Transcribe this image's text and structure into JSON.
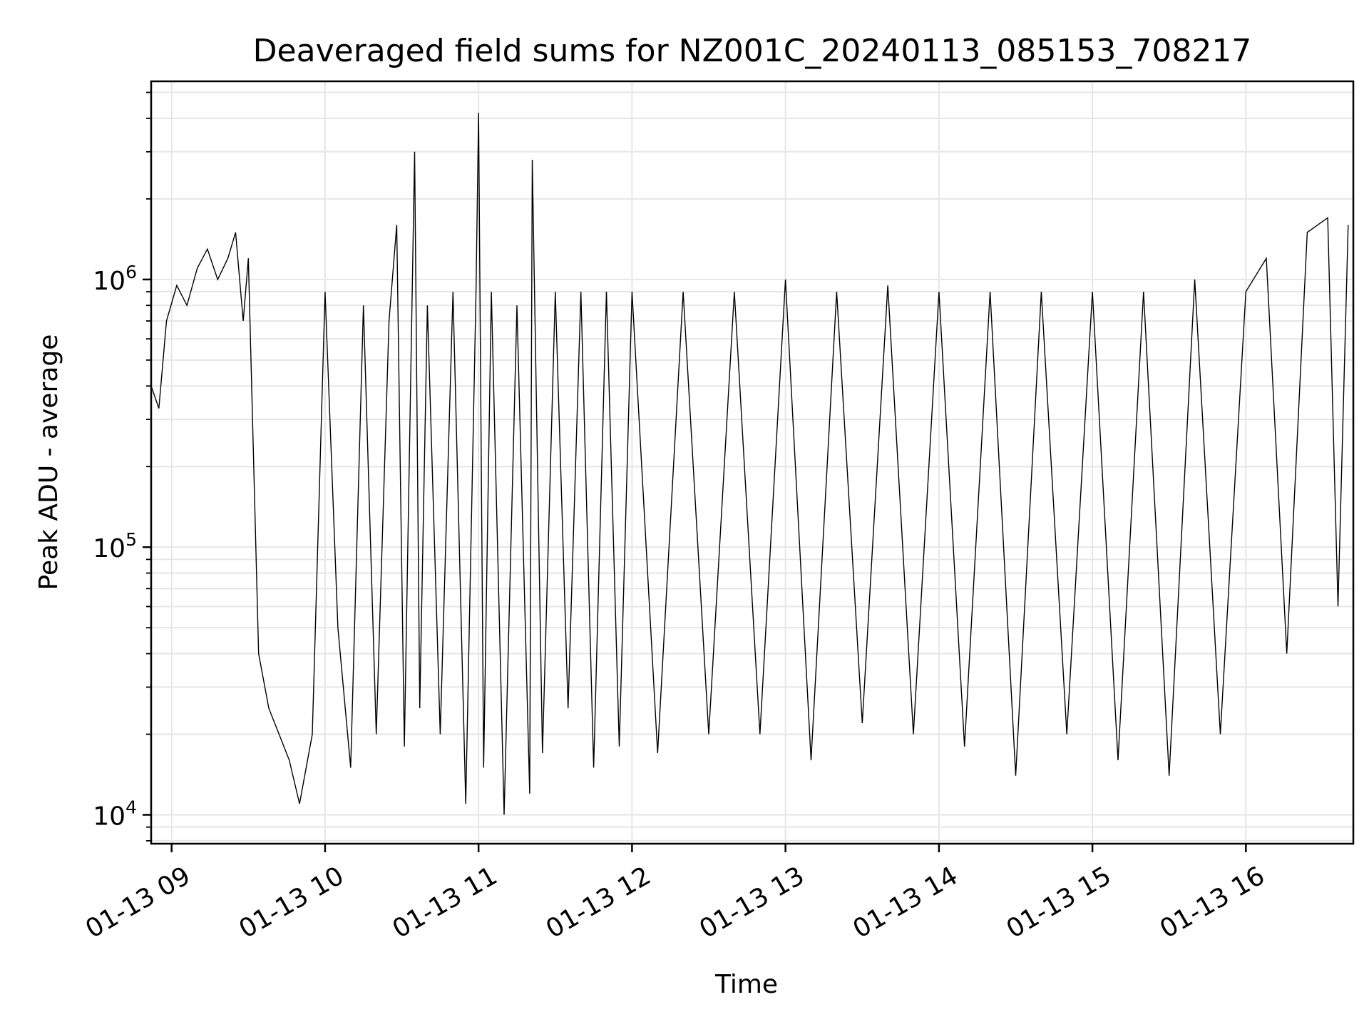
{
  "chart_data": {
    "type": "line",
    "title": "Deaveraged field sums for NZ001C_20240113_085153_708217",
    "xlabel": "Time",
    "ylabel": "Peak ADU - average",
    "yscale": "log",
    "grid": true,
    "line_color": "#000000",
    "grid_color": "#e6e6e6",
    "xlim": [
      "2024-01-13 08:52",
      "2024-01-13 16:42"
    ],
    "ylim": [
      7800,
      5500000
    ],
    "x_ticks": [
      {
        "value": "2024-01-13 09:00",
        "label": "01-13 09"
      },
      {
        "value": "2024-01-13 10:00",
        "label": "01-13 10"
      },
      {
        "value": "2024-01-13 11:00",
        "label": "01-13 11"
      },
      {
        "value": "2024-01-13 12:00",
        "label": "01-13 12"
      },
      {
        "value": "2024-01-13 13:00",
        "label": "01-13 13"
      },
      {
        "value": "2024-01-13 14:00",
        "label": "01-13 14"
      },
      {
        "value": "2024-01-13 15:00",
        "label": "01-13 15"
      },
      {
        "value": "2024-01-13 16:00",
        "label": "01-13 16"
      }
    ],
    "y_ticks": [
      {
        "value": 10000,
        "base": "10",
        "exp": "4"
      },
      {
        "value": 100000,
        "base": "10",
        "exp": "5"
      },
      {
        "value": 1000000,
        "base": "10",
        "exp": "6"
      }
    ],
    "series": [
      {
        "x": [
          "2024-01-13 08:52",
          "2024-01-13 08:55",
          "2024-01-13 08:58",
          "2024-01-13 09:02",
          "2024-01-13 09:06",
          "2024-01-13 09:10",
          "2024-01-13 09:14",
          "2024-01-13 09:18",
          "2024-01-13 09:22",
          "2024-01-13 09:25",
          "2024-01-13 09:28",
          "2024-01-13 09:30",
          "2024-01-13 09:34",
          "2024-01-13 09:38",
          "2024-01-13 09:42",
          "2024-01-13 09:46",
          "2024-01-13 09:50",
          "2024-01-13 09:55",
          "2024-01-13 10:00",
          "2024-01-13 10:05",
          "2024-01-13 10:10",
          "2024-01-13 10:15",
          "2024-01-13 10:20",
          "2024-01-13 10:25",
          "2024-01-13 10:28",
          "2024-01-13 10:31",
          "2024-01-13 10:35",
          "2024-01-13 10:37",
          "2024-01-13 10:40",
          "2024-01-13 10:45",
          "2024-01-13 10:50",
          "2024-01-13 10:55",
          "2024-01-13 10:59",
          "2024-01-13 11:00",
          "2024-01-13 11:02",
          "2024-01-13 11:05",
          "2024-01-13 11:10",
          "2024-01-13 11:15",
          "2024-01-13 11:20",
          "2024-01-13 11:21",
          "2024-01-13 11:25",
          "2024-01-13 11:30",
          "2024-01-13 11:35",
          "2024-01-13 11:40",
          "2024-01-13 11:45",
          "2024-01-13 11:50",
          "2024-01-13 11:55",
          "2024-01-13 12:00",
          "2024-01-13 12:10",
          "2024-01-13 12:20",
          "2024-01-13 12:30",
          "2024-01-13 12:40",
          "2024-01-13 12:50",
          "2024-01-13 13:00",
          "2024-01-13 13:10",
          "2024-01-13 13:20",
          "2024-01-13 13:30",
          "2024-01-13 13:40",
          "2024-01-13 13:50",
          "2024-01-13 14:00",
          "2024-01-13 14:10",
          "2024-01-13 14:20",
          "2024-01-13 14:30",
          "2024-01-13 14:40",
          "2024-01-13 14:50",
          "2024-01-13 15:00",
          "2024-01-13 15:10",
          "2024-01-13 15:20",
          "2024-01-13 15:30",
          "2024-01-13 15:40",
          "2024-01-13 15:50",
          "2024-01-13 16:00",
          "2024-01-13 16:08",
          "2024-01-13 16:16",
          "2024-01-13 16:24",
          "2024-01-13 16:32",
          "2024-01-13 16:36",
          "2024-01-13 16:40"
        ],
        "y": [
          400000,
          330000,
          700000,
          950000,
          800000,
          1100000,
          1300000,
          1000000,
          1200000,
          1500000,
          700000,
          1200000,
          40000,
          25000,
          20000,
          16000,
          11000,
          20000,
          900000,
          50000,
          15000,
          800000,
          20000,
          700000,
          1600000,
          18000,
          3000000,
          25000,
          800000,
          20000,
          900000,
          11000,
          900000,
          4200000,
          15000,
          900000,
          10000,
          800000,
          12000,
          2800000,
          17000,
          900000,
          25000,
          900000,
          15000,
          900000,
          18000,
          900000,
          17000,
          900000,
          20000,
          900000,
          20000,
          1000000,
          16000,
          900000,
          22000,
          950000,
          20000,
          900000,
          18000,
          900000,
          14000,
          900000,
          20000,
          900000,
          16000,
          900000,
          14000,
          1000000,
          20000,
          900000,
          1200000,
          40000,
          1500000,
          1700000,
          60000,
          1600000
        ]
      }
    ]
  }
}
